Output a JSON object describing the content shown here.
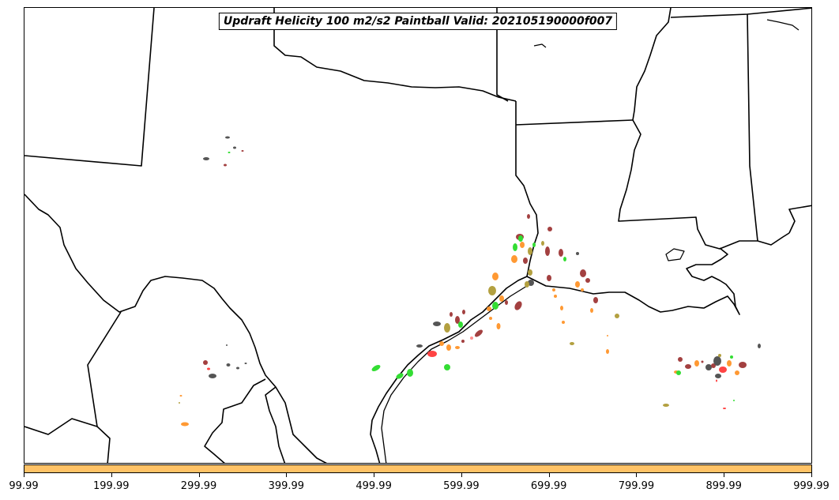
{
  "title": "Updraft Helicity 100 m2/s2 Paintball Valid: 202105190000f007",
  "colorbar": {
    "color": "#ffc266",
    "ticks": [
      "99.99",
      "199.99",
      "299.99",
      "399.99",
      "499.99",
      "599.99",
      "699.99",
      "799.99",
      "899.99",
      "999.99"
    ]
  },
  "map": {
    "region": "Texas / Louisiana Gulf Coast",
    "border_color": "#000000",
    "paintball_colors": [
      "#555555",
      "#ff4444",
      "#a34040",
      "#33dd33",
      "#ff9933",
      "#b3a040",
      "#ff8f8f"
    ]
  }
}
